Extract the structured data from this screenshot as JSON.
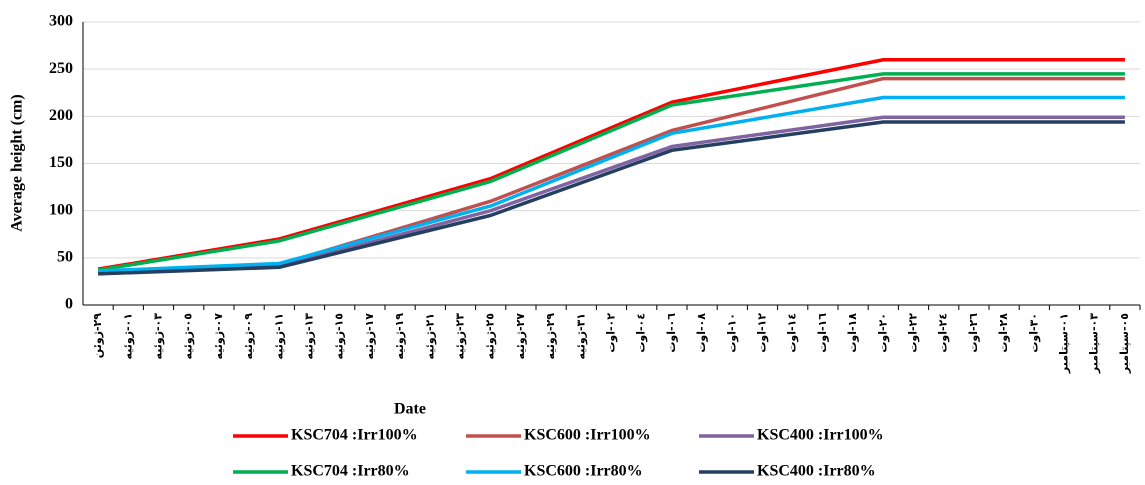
{
  "chart_data": {
    "type": "line",
    "x_label": "Date",
    "y_label": "Average height (cm)",
    "categories": [
      "٢٩-ژوئن",
      "٠١-ژوئیه",
      "٠٣-ژوئیه",
      "٠٥-ژوئیه",
      "٠٧-ژوئیه",
      "٠٩-ژوئیه",
      "١١-ژوئیه",
      "١٣-ژوئیه",
      "١٥-ژوئیه",
      "١٧-ژوئیه",
      "١٩-ژوئیه",
      "٢١-ژوئیه",
      "٢٣-ژوئیه",
      "٢٥-ژوئیه",
      "٢٧-ژوئیه",
      "٢٩-ژوئیه",
      "٣١-ژوئیه",
      "٠٢-اوت",
      "٠٤-اوت",
      "٠٦-اوت",
      "٠٨-اوت",
      "١٠-اوت",
      "١٢-اوت",
      "١٤-اوت",
      "١٦-اوت",
      "١٨-اوت",
      "٢٠-اوت",
      "٢٢-اوت",
      "٢٤-اوت",
      "٢٦-اوت",
      "٢٨-اوت",
      "٣٠-اوت",
      "٠١-سپتامبر",
      "٠٣-سپتامبر",
      "٠٥-سپتامبر"
    ],
    "x": [
      "٢٩-ژوئن",
      "١١-ژوئیه",
      "٢٥-ژوئیه",
      "٠٦-اوت",
      "٢٠-اوت",
      "٠٥-سپتامبر"
    ],
    "series": [
      {
        "name": "KSC704 :Irr100%",
        "color": "#ff0000",
        "values": [
          38,
          70,
          134,
          215,
          260,
          260
        ]
      },
      {
        "name": "KSC600 :Irr100%",
        "color": "#c0504d",
        "values": [
          36,
          43,
          110,
          185,
          240,
          240
        ]
      },
      {
        "name": "KSC400 :Irr100%",
        "color": "#8064a2",
        "values": [
          35,
          41,
          100,
          168,
          199,
          199
        ]
      },
      {
        "name": "KSC704 :Irr80%",
        "color": "#00b050",
        "values": [
          37,
          68,
          131,
          212,
          245,
          245
        ]
      },
      {
        "name": "KSC600 :Irr80%",
        "color": "#00b0f0",
        "values": [
          36,
          44,
          105,
          182,
          220,
          220
        ]
      },
      {
        "name": "KSC400 :Irr80%",
        "color": "#243f60",
        "values": [
          33,
          40,
          95,
          164,
          194,
          194
        ]
      }
    ],
    "ylim": [
      0,
      300
    ],
    "yticks": [
      0,
      50,
      100,
      150,
      200,
      250,
      300
    ],
    "grid": true
  }
}
